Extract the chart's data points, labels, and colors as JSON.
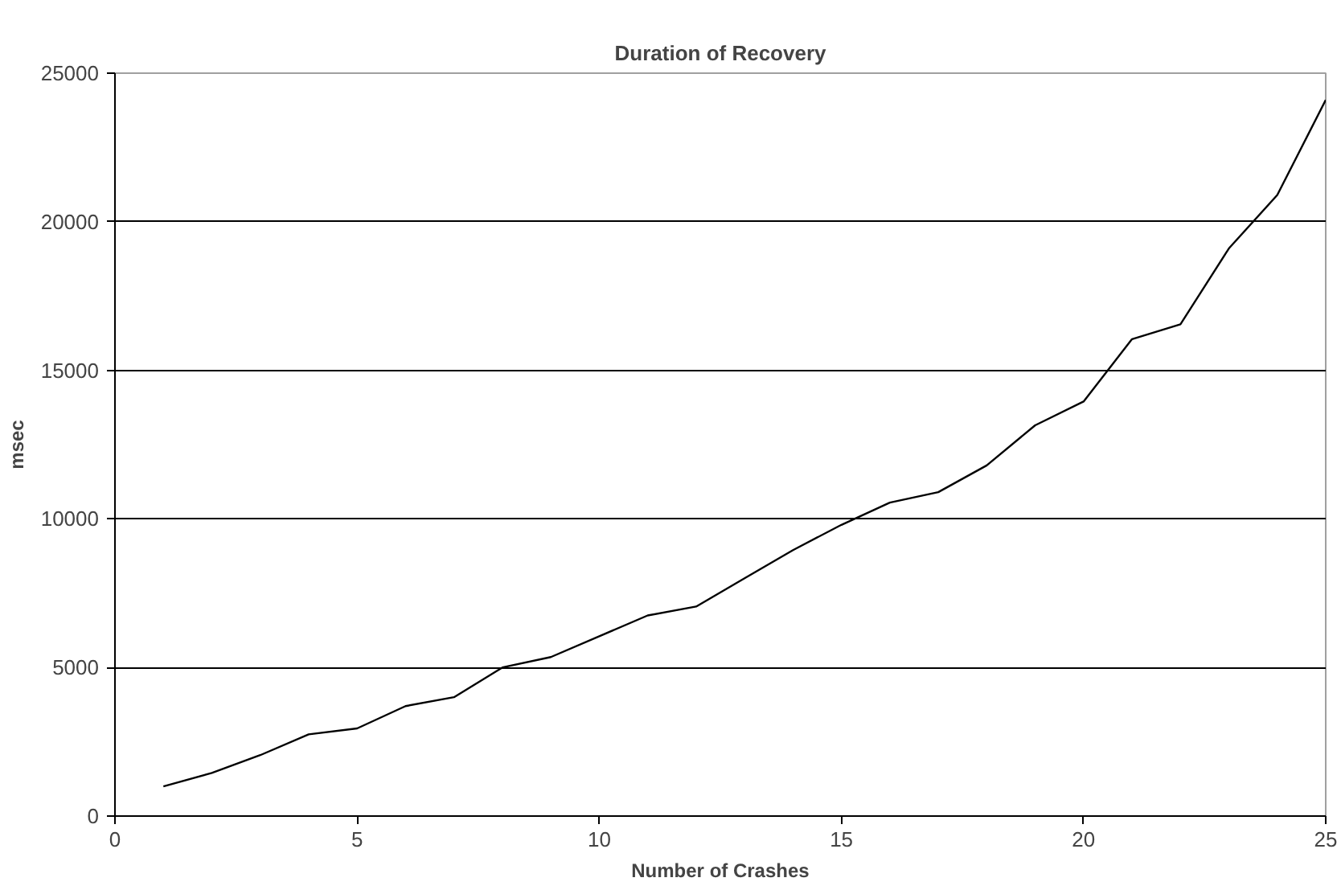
{
  "chart_data": {
    "type": "line",
    "title": "Duration of Recovery",
    "xlabel": "Number of Crashes",
    "ylabel": "msec",
    "x": [
      1,
      2,
      3,
      4,
      5,
      6,
      7,
      8,
      9,
      10,
      11,
      12,
      13,
      14,
      15,
      16,
      17,
      18,
      19,
      20,
      21,
      22,
      23,
      24,
      25
    ],
    "series": [
      {
        "color": "#000000",
        "values": [
          1000,
          1450,
          2050,
          2750,
          2950,
          3700,
          4000,
          5000,
          5350,
          6050,
          6750,
          7050,
          8000,
          8950,
          9800,
          10550,
          10900,
          11800,
          13150,
          13950,
          16050,
          16550,
          19100,
          20900,
          24100
        ]
      }
    ],
    "xlim": [
      0,
      25
    ],
    "xticks": [
      0,
      5,
      10,
      15,
      20,
      25
    ],
    "ylim": [
      0,
      25000
    ],
    "yticks": [
      0,
      5000,
      10000,
      15000,
      20000,
      25000
    ],
    "grid": "y",
    "marker": "none",
    "line_style": "solid"
  }
}
